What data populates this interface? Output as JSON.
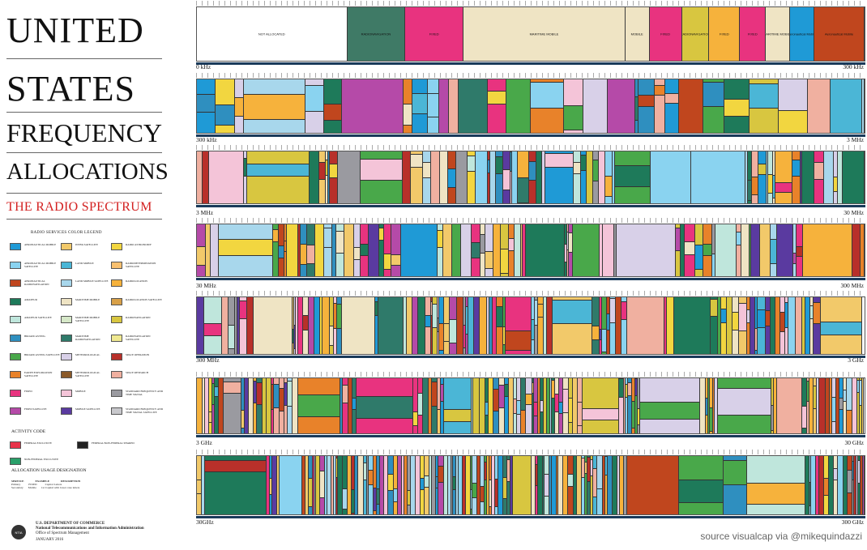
{
  "title_lines": [
    "UNITED",
    "STATES",
    "FREQUENCY",
    "ALLOCATIONS"
  ],
  "subtitle": "THE RADIO SPECTRUM",
  "legend": {
    "title": "RADIO SERVICES COLOR LEGEND",
    "items": [
      {
        "label": "AERONAUTICAL MOBILE",
        "color": "#1f9ad6"
      },
      {
        "label": "AERONAUTICAL MOBILE SATELLITE",
        "color": "#8ad3f0"
      },
      {
        "label": "AERONAUTICAL RADIONAVIGATION",
        "color": "#c0461e"
      },
      {
        "label": "AMATEUR",
        "color": "#1e7a5a"
      },
      {
        "label": "AMATEUR SATELLITE",
        "color": "#bfe6dc"
      },
      {
        "label": "BROADCASTING",
        "color": "#2f8fbf"
      },
      {
        "label": "BROADCASTING SATELLITE",
        "color": "#49a84a"
      },
      {
        "label": "EARTH EXPLORATION SATELLITE",
        "color": "#e8822a"
      },
      {
        "label": "FIXED",
        "color": "#e8337f"
      },
      {
        "label": "FIXED SATELLITE",
        "color": "#b54aa8"
      },
      {
        "label": "INTER-SATELLITE",
        "color": "#f2c96a"
      },
      {
        "label": "LAND MOBILE",
        "color": "#4bb6d6"
      },
      {
        "label": "LAND MOBILE SATELLITE",
        "color": "#a8d7ec"
      },
      {
        "label": "MARITIME MOBILE",
        "color": "#efe4c4"
      },
      {
        "label": "MARITIME MOBILE SATELLITE",
        "color": "#d6e8c8"
      },
      {
        "label": "MARITIME RADIONAVIGATION",
        "color": "#2f7a6a"
      },
      {
        "label": "METEOROLOGICAL",
        "color": "#d8d0e8"
      },
      {
        "label": "METEOROLOGICAL SATELLITE",
        "color": "#8a5a2a"
      },
      {
        "label": "MOBILE",
        "color": "#f4c4d8"
      },
      {
        "label": "MOBILE SATELLITE",
        "color": "#5a3aa0"
      },
      {
        "label": "RADIO ASTRONOMY",
        "color": "#f2d640"
      },
      {
        "label": "RADIODETERMINATION SATELLITE",
        "color": "#f8c070"
      },
      {
        "label": "RADIOLOCATION",
        "color": "#f6b23c"
      },
      {
        "label": "RADIOLOCATION SATELLITE",
        "color": "#d8a048"
      },
      {
        "label": "RADIONAVIGATION",
        "color": "#d8c640"
      },
      {
        "label": "RADIONAVIGATION SATELLITE",
        "color": "#efe890"
      },
      {
        "label": "SPACE OPERATION",
        "color": "#b8302a"
      },
      {
        "label": "SPACE RESEARCH",
        "color": "#f0b0a0"
      },
      {
        "label": "STANDARD FREQUENCY AND TIME SIGNAL",
        "color": "#9a9aa0"
      },
      {
        "label": "STANDARD FREQUENCY AND TIME SIGNAL SATELLITE",
        "color": "#c8c8cc"
      }
    ]
  },
  "activity": {
    "title": "ACTIVITY CODE",
    "items": [
      {
        "label": "FEDERAL EXCLUSIVE",
        "color": "#e8334a"
      },
      {
        "label": "FEDERAL/NON-FEDERAL SHARED",
        "color": "#222222"
      },
      {
        "label": "NON-FEDERAL EXCLUSIVE",
        "color": "#2aa06a"
      }
    ]
  },
  "usage": {
    "title": "ALLOCATION USAGE DESIGNATION",
    "headers": [
      "SERVICE",
      "EXAMPLE",
      "DESCRIPTION"
    ],
    "rows": [
      [
        "Primary",
        "FIXED",
        "Capital Letters"
      ],
      [
        "Secondary",
        "Mobile",
        "1st Capital with lower case letters"
      ]
    ]
  },
  "footer": {
    "line1": "U.S. DEPARTMENT OF COMMERCE",
    "line2": "National Telecommunications and Information Administration",
    "line3": "Office of Spectrum Management",
    "date": "JANUARY 2016",
    "logo": "NTIA"
  },
  "rows": [
    {
      "start": "0 kHz",
      "end": "300 kHz"
    },
    {
      "start": "300 kHz",
      "end": "3 MHz"
    },
    {
      "start": "3 MHz",
      "end": "30 MHz"
    },
    {
      "start": "30 MHz",
      "end": "300 MHz"
    },
    {
      "start": "300 MHz",
      "end": "3 GHz"
    },
    {
      "start": "3 GHz",
      "end": "30 GHz"
    },
    {
      "start": "30GHz",
      "end": "300 GHz"
    }
  ],
  "row1_labels": {
    "not_allocated": "NOT ALLOCATED",
    "radionavigation": "RADIONAVIGATION",
    "fixed": "FIXED",
    "maritime_mobile": "MARITIME MOBILE",
    "mobile": "MOBILE",
    "aeronautical": "Aeronautical Mobile"
  },
  "source": "source visualcap via @mikequindazzi"
}
